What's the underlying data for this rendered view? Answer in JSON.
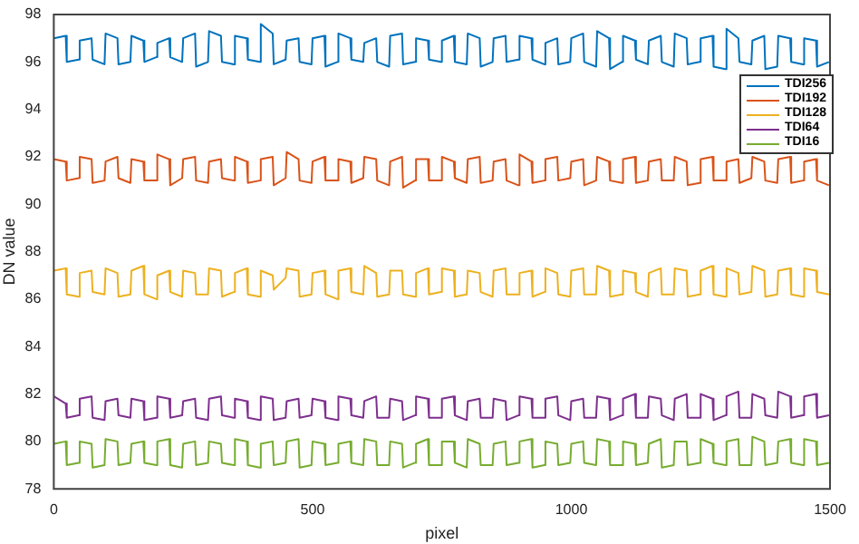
{
  "chart_data": {
    "type": "line",
    "xlabel": "pixel",
    "ylabel": "DN value",
    "x": [
      0,
      23,
      25,
      48,
      50,
      73,
      75,
      98,
      100,
      123,
      125,
      148,
      150,
      173,
      175,
      198,
      200,
      223,
      225,
      248,
      250,
      273,
      275,
      298,
      300,
      323,
      325,
      348,
      350,
      373,
      375,
      398,
      400,
      423,
      425,
      448,
      450,
      473,
      475,
      498,
      500,
      523,
      525,
      548,
      550,
      573,
      575,
      598,
      600,
      623,
      625,
      648,
      650,
      673,
      675,
      698,
      700,
      723,
      725,
      748,
      750,
      773,
      775,
      798,
      800,
      823,
      825,
      848,
      850,
      873,
      875,
      898,
      900,
      923,
      925,
      948,
      950,
      973,
      975,
      998,
      1000,
      1023,
      1025,
      1048,
      1050,
      1073,
      1075,
      1098,
      1100,
      1123,
      1125,
      1148,
      1150,
      1173,
      1175,
      1198,
      1200,
      1223,
      1225,
      1248,
      1250,
      1273,
      1275,
      1298,
      1300,
      1323,
      1325,
      1348,
      1350,
      1373,
      1375,
      1398,
      1400,
      1423,
      1425,
      1448,
      1450,
      1473,
      1475,
      1498
    ],
    "series": [
      {
        "name": "TDI256",
        "color": "#0072bd",
        "values": [
          97.0,
          97.1,
          96.0,
          96.1,
          96.9,
          97.0,
          96.1,
          95.9,
          97.2,
          97.0,
          95.9,
          96.0,
          97.1,
          96.9,
          96.0,
          96.2,
          96.8,
          97.0,
          96.2,
          96.0,
          97.0,
          97.2,
          95.8,
          96.0,
          97.3,
          97.1,
          96.0,
          95.9,
          97.1,
          97.0,
          96.1,
          96.0,
          97.6,
          97.2,
          95.9,
          96.1,
          96.9,
          97.0,
          96.0,
          95.9,
          97.0,
          97.1,
          95.8,
          96.0,
          97.2,
          97.0,
          96.1,
          96.0,
          96.8,
          97.0,
          96.0,
          95.8,
          97.1,
          97.2,
          95.9,
          96.0,
          97.0,
          96.9,
          96.1,
          96.0,
          96.9,
          97.1,
          96.0,
          95.9,
          97.2,
          97.0,
          95.8,
          96.0,
          97.0,
          97.1,
          96.0,
          96.1,
          97.1,
          97.0,
          96.1,
          95.9,
          96.8,
          97.0,
          95.9,
          96.0,
          97.0,
          97.2,
          96.0,
          95.8,
          97.3,
          97.0,
          95.7,
          96.0,
          97.1,
          96.9,
          96.1,
          95.9,
          96.9,
          97.1,
          96.0,
          95.8,
          97.2,
          97.0,
          95.9,
          96.0,
          97.0,
          97.1,
          95.8,
          95.7,
          97.4,
          97.0,
          96.0,
          95.9,
          96.9,
          97.1,
          95.7,
          95.8,
          97.1,
          97.0,
          96.0,
          95.9,
          97.0,
          96.9,
          95.8,
          96.0
        ]
      },
      {
        "name": "TDI192",
        "color": "#d95319",
        "values": [
          91.9,
          91.8,
          91.0,
          91.1,
          92.0,
          91.9,
          90.9,
          91.0,
          91.8,
          92.0,
          91.1,
          90.9,
          91.9,
          91.8,
          91.0,
          91.0,
          92.1,
          91.9,
          90.8,
          91.1,
          91.9,
          92.0,
          91.0,
          90.9,
          91.8,
          91.9,
          91.1,
          91.0,
          92.0,
          91.8,
          90.9,
          91.0,
          91.9,
          92.0,
          90.8,
          91.1,
          92.2,
          91.9,
          91.0,
          90.9,
          91.8,
          92.0,
          91.0,
          91.0,
          91.9,
          91.8,
          90.9,
          91.1,
          92.0,
          91.9,
          91.0,
          90.8,
          91.8,
          92.0,
          90.7,
          91.0,
          91.9,
          91.9,
          91.0,
          91.0,
          92.0,
          91.8,
          91.1,
          90.9,
          91.9,
          92.0,
          90.9,
          91.0,
          91.8,
          91.9,
          91.0,
          90.8,
          92.1,
          91.8,
          90.9,
          91.0,
          91.9,
          92.0,
          91.0,
          91.1,
          91.8,
          91.9,
          90.8,
          91.0,
          92.0,
          91.8,
          91.0,
          90.9,
          91.9,
          92.0,
          90.9,
          91.0,
          91.8,
          91.9,
          91.0,
          91.0,
          92.0,
          91.8,
          90.8,
          90.9,
          91.9,
          92.0,
          91.0,
          91.0,
          91.8,
          91.9,
          90.9,
          91.1,
          92.0,
          91.8,
          91.0,
          90.9,
          91.9,
          92.0,
          90.9,
          91.0,
          91.8,
          91.9,
          91.0,
          90.8
        ]
      },
      {
        "name": "TDI128",
        "color": "#edb120",
        "values": [
          87.2,
          87.3,
          86.2,
          86.1,
          87.1,
          87.2,
          86.3,
          86.2,
          87.3,
          87.1,
          86.1,
          86.2,
          87.2,
          87.4,
          86.2,
          86.0,
          87.0,
          87.2,
          86.3,
          86.1,
          87.2,
          87.1,
          86.2,
          86.2,
          87.3,
          87.2,
          86.1,
          86.3,
          87.1,
          87.3,
          86.2,
          86.1,
          87.2,
          87.0,
          86.4,
          86.9,
          87.3,
          87.2,
          86.1,
          86.2,
          87.1,
          87.2,
          86.2,
          86.0,
          87.2,
          87.3,
          86.3,
          86.2,
          87.4,
          87.1,
          86.1,
          86.2,
          87.2,
          87.2,
          86.2,
          86.1,
          87.1,
          87.3,
          86.2,
          86.3,
          87.3,
          87.2,
          86.1,
          86.2,
          87.2,
          87.1,
          86.3,
          86.1,
          87.2,
          87.3,
          86.2,
          86.2,
          87.1,
          87.2,
          86.1,
          86.3,
          87.3,
          87.1,
          86.2,
          86.1,
          87.2,
          87.3,
          86.2,
          86.2,
          87.4,
          87.2,
          86.1,
          86.2,
          87.2,
          87.1,
          86.3,
          86.1,
          87.1,
          87.3,
          86.2,
          86.2,
          87.3,
          87.2,
          86.1,
          86.2,
          87.2,
          87.4,
          86.2,
          86.1,
          87.3,
          87.1,
          86.2,
          86.3,
          87.4,
          87.2,
          86.1,
          86.2,
          87.2,
          87.3,
          86.2,
          86.1,
          87.3,
          87.2,
          86.3,
          86.2
        ]
      },
      {
        "name": "TDI64",
        "color": "#7e2f8e",
        "values": [
          81.9,
          81.6,
          81.0,
          81.1,
          81.8,
          81.9,
          81.0,
          80.9,
          81.7,
          81.8,
          81.1,
          81.0,
          81.8,
          81.7,
          80.9,
          81.0,
          81.9,
          81.8,
          81.0,
          81.1,
          81.7,
          81.8,
          81.0,
          80.9,
          81.8,
          81.9,
          81.1,
          81.0,
          81.8,
          81.7,
          81.0,
          80.9,
          81.9,
          81.8,
          80.9,
          81.0,
          81.7,
          81.8,
          81.0,
          81.1,
          81.8,
          81.7,
          81.0,
          80.9,
          81.9,
          81.8,
          81.1,
          81.0,
          81.7,
          81.9,
          81.0,
          81.0,
          81.8,
          81.7,
          80.9,
          81.1,
          81.9,
          81.8,
          81.0,
          81.0,
          81.8,
          81.9,
          81.1,
          80.9,
          81.7,
          81.8,
          81.0,
          81.0,
          81.8,
          81.7,
          80.9,
          81.1,
          81.9,
          81.8,
          81.0,
          81.0,
          81.8,
          81.9,
          81.1,
          80.9,
          81.7,
          81.8,
          81.0,
          81.0,
          81.9,
          81.8,
          80.9,
          81.1,
          81.8,
          82.0,
          81.0,
          81.0,
          81.9,
          81.8,
          81.1,
          80.9,
          81.8,
          82.0,
          81.0,
          81.0,
          82.0,
          81.8,
          80.9,
          81.1,
          81.9,
          82.1,
          81.0,
          81.0,
          82.0,
          81.8,
          81.1,
          81.0,
          82.1,
          81.9,
          81.0,
          81.1,
          81.9,
          82.0,
          81.0,
          81.1
        ]
      },
      {
        "name": "TDI16",
        "color": "#77ac30",
        "values": [
          79.9,
          80.0,
          79.0,
          79.1,
          80.0,
          79.9,
          78.9,
          79.0,
          80.1,
          80.0,
          79.0,
          79.1,
          79.9,
          80.0,
          79.1,
          79.0,
          80.0,
          80.1,
          79.0,
          78.9,
          79.9,
          80.0,
          79.0,
          79.1,
          80.0,
          79.9,
          79.1,
          79.0,
          80.1,
          80.0,
          79.0,
          78.9,
          79.9,
          80.0,
          79.0,
          79.1,
          80.0,
          80.1,
          78.9,
          79.0,
          80.0,
          79.9,
          79.0,
          79.1,
          79.9,
          80.0,
          79.1,
          79.0,
          80.1,
          80.0,
          79.0,
          79.0,
          80.0,
          79.9,
          78.9,
          79.1,
          79.9,
          80.1,
          79.0,
          79.0,
          80.0,
          80.0,
          79.1,
          78.9,
          80.1,
          79.9,
          79.0,
          79.0,
          79.9,
          80.0,
          79.0,
          79.1,
          80.0,
          80.1,
          78.9,
          79.0,
          80.0,
          79.9,
          79.0,
          79.1,
          79.9,
          80.0,
          79.1,
          79.0,
          80.1,
          80.0,
          79.0,
          79.0,
          80.0,
          79.9,
          79.0,
          79.1,
          79.9,
          80.1,
          78.9,
          79.0,
          80.0,
          80.0,
          79.0,
          79.1,
          80.1,
          79.9,
          79.1,
          79.0,
          80.0,
          80.1,
          79.0,
          79.0,
          80.2,
          80.0,
          79.0,
          79.1,
          80.0,
          80.1,
          79.1,
          79.0,
          80.1,
          80.0,
          79.0,
          79.1
        ]
      }
    ],
    "xlim": [
      0,
      1500
    ],
    "xticks": [
      0,
      500,
      1000,
      1500
    ],
    "ylim": [
      78,
      98
    ],
    "yticks": [
      78,
      80,
      82,
      84,
      86,
      88,
      90,
      92,
      94,
      96,
      98
    ],
    "grid": false,
    "legend": "top right",
    "marker": "none",
    "line_style": "solid"
  }
}
